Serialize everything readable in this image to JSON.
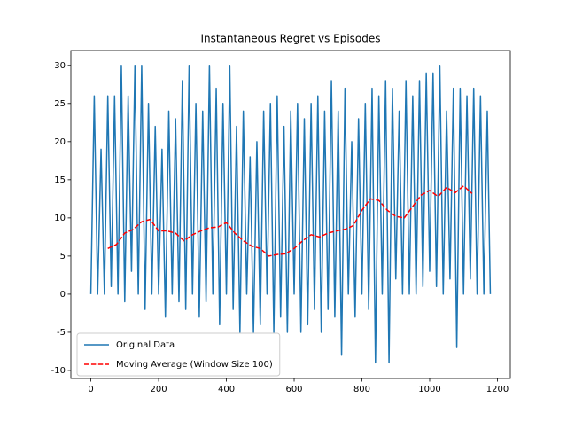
{
  "chart_data": {
    "type": "line",
    "title": "Instantaneous Regret vs Episodes",
    "xlim": [
      -59,
      1238
    ],
    "ylim": [
      -11.05,
      31.95
    ],
    "xticks": [
      0,
      200,
      400,
      600,
      800,
      1000,
      1200
    ],
    "yticks": [
      -10,
      -5,
      0,
      5,
      10,
      15,
      20,
      25,
      30
    ],
    "grid": false,
    "legend": "lower left",
    "series": [
      {
        "name": "Original Data",
        "color": "#1f77b4",
        "style": "solid",
        "x": [
          0,
          10,
          20,
          30,
          40,
          50,
          60,
          70,
          80,
          90,
          100,
          110,
          120,
          130,
          140,
          150,
          160,
          170,
          180,
          190,
          200,
          210,
          220,
          230,
          240,
          250,
          260,
          270,
          280,
          290,
          300,
          310,
          320,
          330,
          340,
          350,
          360,
          370,
          380,
          390,
          400,
          410,
          420,
          430,
          440,
          450,
          460,
          470,
          480,
          490,
          500,
          510,
          520,
          530,
          540,
          550,
          560,
          570,
          580,
          590,
          600,
          610,
          620,
          630,
          640,
          650,
          660,
          670,
          680,
          690,
          700,
          710,
          720,
          730,
          740,
          750,
          760,
          770,
          780,
          790,
          800,
          810,
          820,
          830,
          840,
          850,
          860,
          870,
          880,
          890,
          900,
          910,
          920,
          930,
          940,
          950,
          960,
          970,
          980,
          990,
          1000,
          1010,
          1020,
          1030,
          1040,
          1050,
          1060,
          1070,
          1080,
          1090,
          1100,
          1110,
          1120,
          1130,
          1140,
          1150,
          1160,
          1170,
          1179
        ],
        "values": [
          0,
          26,
          0,
          19,
          0,
          26,
          1,
          26,
          0,
          30,
          -1,
          26,
          3,
          30,
          0,
          30,
          -2,
          25,
          0,
          22,
          0,
          19,
          -3,
          24,
          0,
          23,
          -1,
          28,
          -2,
          30,
          0,
          25,
          -3,
          24,
          -1,
          30,
          0,
          27,
          -4,
          25,
          0,
          30,
          -2,
          22,
          -5,
          24,
          0,
          18,
          -5,
          20,
          -4,
          24,
          0,
          25,
          -5,
          26,
          -3,
          22,
          -5,
          24,
          0,
          25,
          -5,
          23,
          -4,
          25,
          -2,
          26,
          -5,
          24,
          -2,
          28,
          -3,
          24,
          -8,
          27,
          0,
          20,
          -3,
          23,
          0,
          25,
          -2,
          27,
          -9,
          26,
          0,
          28,
          -9,
          27,
          2,
          24,
          0,
          28,
          0,
          26,
          0,
          28,
          1,
          29,
          3,
          29,
          1,
          30,
          0,
          24,
          2,
          27,
          -7,
          27,
          0,
          26,
          2,
          27,
          0,
          26,
          0,
          24,
          0
        ]
      },
      {
        "name": "Moving Average (Window Size 100)",
        "color": "#ff0000",
        "style": "dashed",
        "x": [
          50,
          75,
          100,
          125,
          150,
          175,
          200,
          225,
          250,
          275,
          300,
          325,
          350,
          375,
          400,
          425,
          450,
          475,
          500,
          525,
          550,
          575,
          600,
          625,
          650,
          675,
          700,
          725,
          750,
          775,
          800,
          825,
          850,
          875,
          900,
          925,
          950,
          975,
          1000,
          1025,
          1050,
          1075,
          1100,
          1125
        ],
        "values": [
          6,
          6.5,
          8,
          8.5,
          9.5,
          9.8,
          8.3,
          8.3,
          8,
          7,
          7.8,
          8.3,
          8.7,
          8.8,
          9.4,
          8,
          7,
          6.3,
          6,
          5,
          5.2,
          5.3,
          6,
          7,
          7.8,
          7.5,
          8,
          8.3,
          8.5,
          9,
          11,
          12.5,
          12.3,
          11,
          10.2,
          10,
          11.5,
          13,
          13.6,
          12.8,
          14,
          13.3,
          14.2,
          13.2
        ]
      }
    ]
  }
}
